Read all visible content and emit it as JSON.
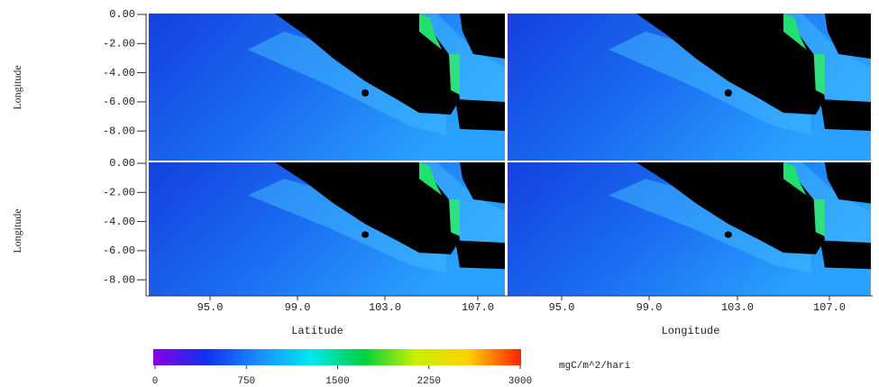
{
  "rows": [
    {
      "y_label": "Longitude",
      "y_ticks": [
        "0.00",
        "-2.00",
        "-4.00",
        "-6.00",
        "-8.00"
      ]
    },
    {
      "y_label": "Longitude",
      "y_ticks": [
        "0.00",
        "-2.00",
        "-4.00",
        "-6.00",
        "-8.00"
      ]
    }
  ],
  "columns": [
    {
      "x_label": "Latitude",
      "x_ticks": [
        "95.0",
        "99.0",
        "103.0",
        "107.0"
      ]
    },
    {
      "x_label": "Longitude",
      "x_ticks": [
        "95.0",
        "99.0",
        "103.0",
        "107.0"
      ]
    }
  ],
  "colorbar": {
    "lim": [
      0,
      3000
    ],
    "ticks": [
      0,
      750,
      1500,
      2250,
      3000
    ],
    "unit": "mgC/m^2/hari",
    "colors": [
      "#8a00e0",
      "#1030f0",
      "#1a8cff",
      "#00e8f0",
      "#00d040",
      "#c8f000",
      "#ffd000",
      "#ff2000"
    ]
  }
}
